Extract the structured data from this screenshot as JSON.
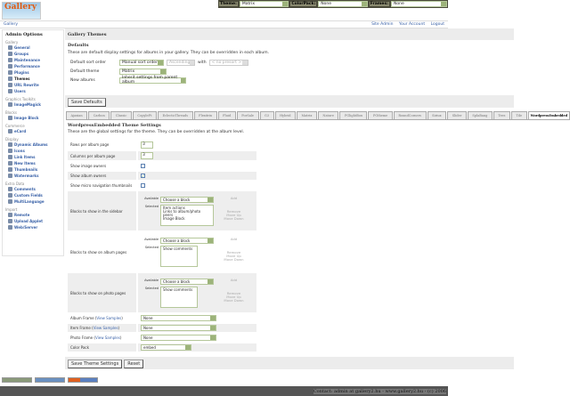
{
  "topbar": {
    "theme_label": "Theme:",
    "theme_value": "Matrix",
    "colorpack_label": "ColorPack:",
    "colorpack_value": "None",
    "frames_label": "Frames:",
    "frames_value": "None"
  },
  "logo": "Gallery",
  "breadcrumb": "Gallery",
  "header_links": [
    "Site Admin",
    "Your Account",
    "Logout"
  ],
  "sidebar": {
    "title": "Admin Options",
    "groups": [
      {
        "label": "Gallery",
        "items": [
          "General",
          "Groups",
          "Maintenance",
          "Performance",
          "Plugins",
          "Themes",
          "URL Rewrite",
          "Users"
        ]
      },
      {
        "label": "Graphics Toolkits",
        "items": [
          "ImageMagick"
        ]
      },
      {
        "label": "Blocks",
        "items": [
          "Image Block"
        ]
      },
      {
        "label": "Commerce",
        "items": [
          "eCard"
        ]
      },
      {
        "label": "Display",
        "items": [
          "Dynamic Albums",
          "Icons",
          "Link Items",
          "New Items",
          "Thumbnails",
          "Watermarks"
        ]
      },
      {
        "label": "Extra Data",
        "items": [
          "Comments",
          "Custom Fields",
          "MultiLanguage"
        ]
      },
      {
        "label": "Import",
        "items": [
          "Remote",
          "Upload Applet",
          "Web/Server"
        ]
      }
    ],
    "current": "Themes"
  },
  "main": {
    "title": "Gallery Themes",
    "defaults_title": "Defaults",
    "defaults_desc": "These are default display settings for albums in your gallery. They can be overridden in each album.",
    "sort_label": "Default sort order",
    "sort_value": "Manual sort order",
    "sort_dir": "Ascending",
    "with_label": "with",
    "with_value": "< no presort >",
    "theme_label": "Default theme",
    "theme_value": "Matrix",
    "new_albums_label": "New albums",
    "new_albums_value": "Inherit settings from parent album",
    "save_defaults": "Save Defaults"
  },
  "tabs": [
    "Ajaxian",
    "Carbon",
    "Classic",
    "CopyleFt",
    "EclecticThreads",
    "Flexitrix",
    "Fluid",
    "ForSale",
    "G3",
    "Hybrid",
    "Matrix",
    "Nature",
    "PGlightBox",
    "PGtheme",
    "RoundCorners",
    "Siriux",
    "Slider",
    "SplaBang",
    "Tees",
    "Tile",
    "WordpressEmbedded"
  ],
  "active_tab": "WordpressEmbedded",
  "settings": {
    "title": "WordpressEmbedded Theme Settings",
    "desc": "These are the global settings for the theme. They can be overridden at the album level.",
    "rows_label": "Rows per album page",
    "rows_value": "3",
    "cols_label": "Columns per album page",
    "cols_value": "3",
    "image_owners_label": "Show image owners",
    "image_owners": false,
    "album_owners_label": "Show album owners",
    "album_owners": true,
    "micro_label": "Show micro navigation thumbnails",
    "micro": false,
    "available_label": "Available",
    "selected_label": "Selected",
    "choose": "Choose a block",
    "add": "Add",
    "remove": "Remove",
    "move_up": "Move Up",
    "move_down": "Move Down",
    "blocks": [
      {
        "label": "Blocks to show in the sidebar",
        "selected": [
          "Item actions",
          "Links to album/photo peers",
          "Image Block"
        ]
      },
      {
        "label": "Blocks to show on album pages",
        "selected": [
          "Show comments"
        ]
      },
      {
        "label": "Blocks to show on photo pages",
        "selected": [
          "Show comments"
        ]
      }
    ],
    "view_samples": "View Samples",
    "album_frame_label": "Album Frame",
    "album_frame": "None",
    "item_frame_label": "Item Frame",
    "item_frame": "None",
    "photo_frame_label": "Photo Frame",
    "photo_frame": "None",
    "color_pack_label": "Color Pack",
    "color_pack": "embed",
    "save": "Save Theme Settings",
    "reset": "Reset"
  },
  "footer": "Contact: admin at gallery2.hu - www.gallery2.hu - (c) 2006"
}
